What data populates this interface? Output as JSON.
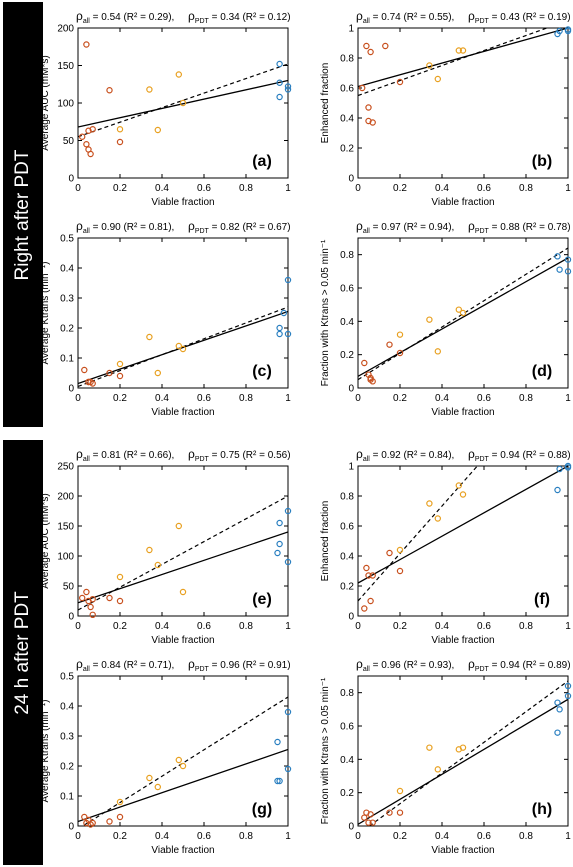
{
  "sections": [
    {
      "label": "Right after PDT"
    },
    {
      "label": "24 h after PDT"
    }
  ],
  "colors": {
    "early": "#c8501e",
    "mid": "#e8a020",
    "late": "#2a7fc0",
    "axis": "#000000"
  },
  "xlabel": "Viable fraction",
  "chart_data": [
    {
      "type": "scatter",
      "panel": "(a)",
      "ylabel": "Average AUC (mM*s)",
      "xlim": [
        0,
        1
      ],
      "ylim": [
        0,
        200
      ],
      "xticks": [
        0,
        0.2,
        0.4,
        0.6,
        0.8,
        1
      ],
      "yticks": [
        0,
        50,
        100,
        150,
        200
      ],
      "xtick_labels": [
        "0",
        "0.2",
        "0.4",
        "0.6",
        "0.8",
        "1"
      ],
      "ytick_labels": [
        "0",
        "50",
        "100",
        "150",
        "200"
      ],
      "stats_all": "ρall = 0.54 (R² = 0.29),",
      "stats_pdt": "ρPDT = 0.34 (R² = 0.12)",
      "solid_line": [
        [
          0,
          68
        ],
        [
          1,
          130
        ]
      ],
      "dashed_line": [
        [
          0,
          55
        ],
        [
          1,
          152
        ]
      ],
      "series": [
        {
          "group": "early",
          "points": [
            [
              0.04,
              178
            ],
            [
              0.02,
              55
            ],
            [
              0.04,
              45
            ],
            [
              0.05,
              38
            ],
            [
              0.06,
              32
            ],
            [
              0.05,
              63
            ],
            [
              0.07,
              65
            ],
            [
              0.15,
              117
            ],
            [
              0.2,
              48
            ]
          ]
        },
        {
          "group": "mid",
          "points": [
            [
              0.2,
              65
            ],
            [
              0.34,
              118
            ],
            [
              0.38,
              64
            ],
            [
              0.48,
              138
            ],
            [
              0.5,
              100
            ]
          ]
        },
        {
          "group": "late",
          "points": [
            [
              0.96,
              152
            ],
            [
              0.96,
              127
            ],
            [
              0.96,
              108
            ],
            [
              1.0,
              122
            ],
            [
              1.0,
              118
            ]
          ]
        }
      ]
    },
    {
      "type": "scatter",
      "panel": "(b)",
      "ylabel": "Enhanced fraction",
      "xlim": [
        0,
        1
      ],
      "ylim": [
        0,
        1
      ],
      "xticks": [
        0,
        0.2,
        0.4,
        0.6,
        0.8,
        1
      ],
      "yticks": [
        0,
        0.2,
        0.4,
        0.6,
        0.8,
        1
      ],
      "xtick_labels": [
        "0",
        "0.2",
        "0.4",
        "0.6",
        "0.8",
        "1"
      ],
      "ytick_labels": [
        "0",
        "0.2",
        "0.4",
        "0.6",
        "0.8",
        "1"
      ],
      "stats_all": "ρall = 0.74 (R² = 0.55),",
      "stats_pdt": "ρPDT = 0.43 (R² = 0.19)",
      "solid_line": [
        [
          0,
          0.61
        ],
        [
          1,
          1.0
        ]
      ],
      "dashed_line": [
        [
          0,
          0.55
        ],
        [
          1,
          1.05
        ]
      ],
      "series": [
        {
          "group": "early",
          "points": [
            [
              0.02,
              0.6
            ],
            [
              0.04,
              0.88
            ],
            [
              0.06,
              0.84
            ],
            [
              0.05,
              0.47
            ],
            [
              0.05,
              0.38
            ],
            [
              0.07,
              0.37
            ],
            [
              0.13,
              0.88
            ],
            [
              0.2,
              0.64
            ]
          ]
        },
        {
          "group": "mid",
          "points": [
            [
              0.34,
              0.75
            ],
            [
              0.38,
              0.66
            ],
            [
              0.48,
              0.85
            ],
            [
              0.5,
              0.85
            ]
          ]
        },
        {
          "group": "late",
          "points": [
            [
              0.95,
              0.96
            ],
            [
              0.96,
              0.98
            ],
            [
              1.0,
              0.99
            ],
            [
              1.0,
              0.98
            ]
          ]
        }
      ]
    },
    {
      "type": "scatter",
      "panel": "(c)",
      "ylabel": "Average Ktrans (min⁻¹)",
      "xlim": [
        0,
        1
      ],
      "ylim": [
        0,
        0.5
      ],
      "xticks": [
        0,
        0.2,
        0.4,
        0.6,
        0.8,
        1
      ],
      "yticks": [
        0,
        0.1,
        0.2,
        0.3,
        0.4,
        0.5
      ],
      "xtick_labels": [
        "0",
        "0.2",
        "0.4",
        "0.6",
        "0.8",
        "1"
      ],
      "ytick_labels": [
        "0",
        "0.1",
        "0.2",
        "0.3",
        "0.4",
        "0.5"
      ],
      "stats_all": "ρall = 0.90 (R² = 0.81),",
      "stats_pdt": "ρPDT = 0.82 (R² = 0.67)",
      "solid_line": [
        [
          0,
          0.015
        ],
        [
          1,
          0.255
        ]
      ],
      "dashed_line": [
        [
          0,
          0.005
        ],
        [
          1,
          0.27
        ]
      ],
      "series": [
        {
          "group": "early",
          "points": [
            [
              0.03,
              0.06
            ],
            [
              0.05,
              0.02
            ],
            [
              0.06,
              0.02
            ],
            [
              0.07,
              0.015
            ],
            [
              0.05,
              0.02
            ],
            [
              0.15,
              0.05
            ],
            [
              0.2,
              0.04
            ]
          ]
        },
        {
          "group": "mid",
          "points": [
            [
              0.2,
              0.08
            ],
            [
              0.34,
              0.17
            ],
            [
              0.38,
              0.05
            ],
            [
              0.48,
              0.14
            ],
            [
              0.5,
              0.13
            ]
          ]
        },
        {
          "group": "late",
          "points": [
            [
              0.96,
              0.2
            ],
            [
              0.96,
              0.18
            ],
            [
              1.0,
              0.36
            ],
            [
              1.0,
              0.18
            ],
            [
              0.98,
              0.25
            ]
          ]
        }
      ]
    },
    {
      "type": "scatter",
      "panel": "(d)",
      "ylabel": "Fraction with Ktrans > 0.05 min⁻¹",
      "xlim": [
        0,
        1
      ],
      "ylim": [
        0,
        0.9
      ],
      "xticks": [
        0,
        0.2,
        0.4,
        0.6,
        0.8,
        1
      ],
      "yticks": [
        0,
        0.2,
        0.4,
        0.6,
        0.8
      ],
      "xtick_labels": [
        "0",
        "0.2",
        "0.4",
        "0.6",
        "0.8",
        "1"
      ],
      "ytick_labels": [
        "0",
        "0.2",
        "0.4",
        "0.6",
        "0.8"
      ],
      "stats_all": "ρall = 0.97 (R² = 0.94),",
      "stats_pdt": "ρPDT = 0.88 (R² = 0.78)",
      "solid_line": [
        [
          0,
          0.07
        ],
        [
          1,
          0.78
        ]
      ],
      "dashed_line": [
        [
          0,
          0.05
        ],
        [
          1,
          0.84
        ]
      ],
      "series": [
        {
          "group": "early",
          "points": [
            [
              0.03,
              0.15
            ],
            [
              0.05,
              0.08
            ],
            [
              0.06,
              0.05
            ],
            [
              0.07,
              0.04
            ],
            [
              0.06,
              0.06
            ],
            [
              0.15,
              0.26
            ],
            [
              0.2,
              0.21
            ]
          ]
        },
        {
          "group": "mid",
          "points": [
            [
              0.2,
              0.32
            ],
            [
              0.34,
              0.41
            ],
            [
              0.38,
              0.22
            ],
            [
              0.48,
              0.47
            ],
            [
              0.5,
              0.45
            ]
          ]
        },
        {
          "group": "late",
          "points": [
            [
              0.95,
              0.79
            ],
            [
              0.96,
              0.71
            ],
            [
              1.0,
              0.77
            ],
            [
              1.0,
              0.7
            ]
          ]
        }
      ]
    },
    {
      "type": "scatter",
      "panel": "(e)",
      "ylabel": "Average AUC (mM*s)",
      "xlim": [
        0,
        1
      ],
      "ylim": [
        0,
        250
      ],
      "xticks": [
        0,
        0.2,
        0.4,
        0.6,
        0.8,
        1
      ],
      "yticks": [
        0,
        50,
        100,
        150,
        200,
        250
      ],
      "xtick_labels": [
        "0",
        "0.2",
        "0.4",
        "0.6",
        "0.8",
        "1"
      ],
      "ytick_labels": [
        "0",
        "50",
        "100",
        "150",
        "200",
        "250"
      ],
      "stats_all": "ρall = 0.81 (R² = 0.66),",
      "stats_pdt": "ρPDT = 0.75 (R² = 0.56)",
      "solid_line": [
        [
          0,
          22
        ],
        [
          1,
          140
        ]
      ],
      "dashed_line": [
        [
          0,
          10
        ],
        [
          1,
          200
        ]
      ],
      "series": [
        {
          "group": "early",
          "points": [
            [
              0.02,
              30
            ],
            [
              0.04,
              40
            ],
            [
              0.05,
              25
            ],
            [
              0.06,
              15
            ],
            [
              0.07,
              2
            ],
            [
              0.07,
              28
            ],
            [
              0.15,
              30
            ],
            [
              0.2,
              25
            ]
          ]
        },
        {
          "group": "mid",
          "points": [
            [
              0.2,
              65
            ],
            [
              0.34,
              110
            ],
            [
              0.38,
              85
            ],
            [
              0.48,
              150
            ],
            [
              0.5,
              40
            ]
          ]
        },
        {
          "group": "late",
          "points": [
            [
              0.95,
              105
            ],
            [
              0.96,
              120
            ],
            [
              0.96,
              155
            ],
            [
              1.0,
              90
            ],
            [
              1.0,
              175
            ]
          ]
        }
      ]
    },
    {
      "type": "scatter",
      "panel": "(f)",
      "ylabel": "Enhanced fraction",
      "xlim": [
        0,
        1
      ],
      "ylim": [
        0,
        1
      ],
      "xticks": [
        0,
        0.2,
        0.4,
        0.6,
        0.8,
        1
      ],
      "yticks": [
        0,
        0.2,
        0.4,
        0.6,
        0.8,
        1
      ],
      "xtick_labels": [
        "0",
        "0.2",
        "0.4",
        "0.6",
        "0.8",
        "1"
      ],
      "ytick_labels": [
        "0",
        "0.2",
        "0.4",
        "0.6",
        "0.8",
        "1"
      ],
      "stats_all": "ρall = 0.92 (R² = 0.84),",
      "stats_pdt": "ρPDT = 0.94 (R² = 0.88)",
      "solid_line": [
        [
          0,
          0.22
        ],
        [
          1,
          1.0
        ]
      ],
      "dashed_line": [
        [
          0,
          0.1
        ],
        [
          0.6,
          1.05
        ]
      ],
      "series": [
        {
          "group": "early",
          "points": [
            [
              0.03,
              0.05
            ],
            [
              0.04,
              0.32
            ],
            [
              0.05,
              0.27
            ],
            [
              0.06,
              0.1
            ],
            [
              0.07,
              0.27
            ],
            [
              0.15,
              0.42
            ],
            [
              0.2,
              0.3
            ]
          ]
        },
        {
          "group": "mid",
          "points": [
            [
              0.2,
              0.44
            ],
            [
              0.34,
              0.75
            ],
            [
              0.38,
              0.65
            ],
            [
              0.48,
              0.87
            ],
            [
              0.5,
              0.81
            ]
          ]
        },
        {
          "group": "late",
          "points": [
            [
              0.95,
              0.84
            ],
            [
              0.96,
              0.98
            ],
            [
              1.0,
              0.99
            ],
            [
              1.0,
              1.0
            ]
          ]
        }
      ]
    },
    {
      "type": "scatter",
      "panel": "(g)",
      "ylabel": "Average Ktrans (min⁻¹)",
      "xlim": [
        0,
        1
      ],
      "ylim": [
        0,
        0.5
      ],
      "xticks": [
        0,
        0.2,
        0.4,
        0.6,
        0.8,
        1
      ],
      "yticks": [
        0,
        0.1,
        0.2,
        0.3,
        0.4,
        0.5
      ],
      "xtick_labels": [
        "0",
        "0.2",
        "0.4",
        "0.6",
        "0.8",
        "1"
      ],
      "ytick_labels": [
        "0",
        "0.1",
        "0.2",
        "0.3",
        "0.4",
        "0.5"
      ],
      "stats_all": "ρall = 0.84 (R² = 0.71),",
      "stats_pdt": "ρPDT = 0.96 (R² = 0.91)",
      "solid_line": [
        [
          0,
          0.015
        ],
        [
          1,
          0.255
        ]
      ],
      "dashed_line": [
        [
          0,
          -0.01
        ],
        [
          1,
          0.43
        ]
      ],
      "series": [
        {
          "group": "early",
          "points": [
            [
              0.03,
              0.03
            ],
            [
              0.04,
              0.01
            ],
            [
              0.05,
              0.02
            ],
            [
              0.06,
              0.005
            ],
            [
              0.07,
              0.01
            ],
            [
              0.15,
              0.015
            ],
            [
              0.2,
              0.03
            ]
          ]
        },
        {
          "group": "mid",
          "points": [
            [
              0.2,
              0.08
            ],
            [
              0.34,
              0.16
            ],
            [
              0.38,
              0.13
            ],
            [
              0.48,
              0.22
            ],
            [
              0.5,
              0.2
            ]
          ]
        },
        {
          "group": "late",
          "points": [
            [
              0.95,
              0.15
            ],
            [
              0.96,
              0.15
            ],
            [
              0.95,
              0.28
            ],
            [
              1.0,
              0.38
            ],
            [
              1.0,
              0.19
            ]
          ]
        }
      ]
    },
    {
      "type": "scatter",
      "panel": "(h)",
      "ylabel": "Fraction with Ktrans > 0.05 min⁻¹",
      "xlim": [
        0,
        1
      ],
      "ylim": [
        0,
        0.9
      ],
      "xticks": [
        0,
        0.2,
        0.4,
        0.6,
        0.8,
        1
      ],
      "yticks": [
        0,
        0.2,
        0.4,
        0.6,
        0.8
      ],
      "xtick_labels": [
        "0",
        "0.2",
        "0.4",
        "0.6",
        "0.8",
        "1"
      ],
      "ytick_labels": [
        "0",
        "0.2",
        "0.4",
        "0.6",
        "0.8"
      ],
      "stats_all": "ρall = 0.96 (R² = 0.93),",
      "stats_pdt": "ρPDT = 0.94 (R² = 0.89)",
      "solid_line": [
        [
          0,
          0.01
        ],
        [
          1,
          0.76
        ]
      ],
      "dashed_line": [
        [
          0,
          -0.05
        ],
        [
          1,
          0.87
        ]
      ],
      "series": [
        {
          "group": "early",
          "points": [
            [
              0.03,
              0.05
            ],
            [
              0.04,
              0.08
            ],
            [
              0.05,
              0.02
            ],
            [
              0.06,
              0.07
            ],
            [
              0.07,
              0.02
            ],
            [
              0.15,
              0.08
            ],
            [
              0.2,
              0.08
            ]
          ]
        },
        {
          "group": "mid",
          "points": [
            [
              0.2,
              0.21
            ],
            [
              0.34,
              0.47
            ],
            [
              0.38,
              0.34
            ],
            [
              0.48,
              0.46
            ],
            [
              0.5,
              0.47
            ]
          ]
        },
        {
          "group": "late",
          "points": [
            [
              0.95,
              0.56
            ],
            [
              0.95,
              0.74
            ],
            [
              0.96,
              0.7
            ],
            [
              1.0,
              0.84
            ],
            [
              1.0,
              0.78
            ]
          ]
        }
      ]
    }
  ]
}
